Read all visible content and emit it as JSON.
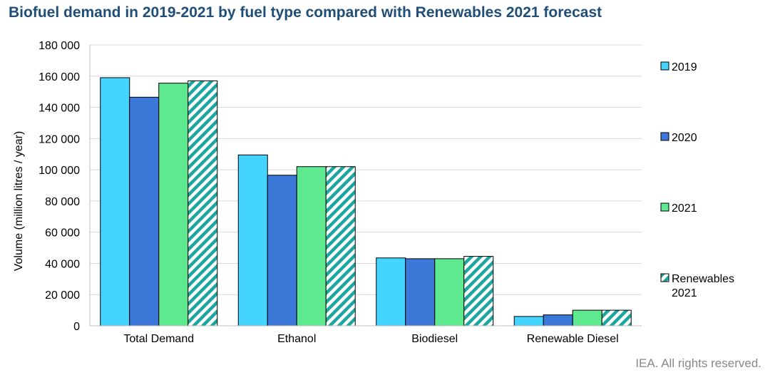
{
  "chart_data": {
    "type": "bar",
    "title": "Biofuel demand in 2019-2021 by fuel type compared with Renewables 2021 forecast",
    "ylabel": "Volume (million litres / year)",
    "xlabel": "",
    "categories": [
      "Total Demand",
      "Ethanol",
      "Biodiesel",
      "Renewable Diesel"
    ],
    "ylim": [
      0,
      180000
    ],
    "yticks": [
      0,
      20000,
      40000,
      60000,
      80000,
      100000,
      120000,
      140000,
      160000,
      180000
    ],
    "ytick_labels": [
      "0",
      "20 000",
      "40 000",
      "60 000",
      "80 000",
      "100 000",
      "120 000",
      "140 000",
      "160 000",
      "180 000"
    ],
    "grid": true,
    "legend_position": "right",
    "series": [
      {
        "name": "2019",
        "color": "#45d3ff",
        "pattern": "solid",
        "values": [
          159000,
          109500,
          43500,
          6000
        ]
      },
      {
        "name": "2020",
        "color": "#3c78d8",
        "pattern": "solid",
        "values": [
          146500,
          96500,
          43000,
          7000
        ]
      },
      {
        "name": "2021",
        "color": "#5ee88f",
        "pattern": "solid",
        "values": [
          155500,
          102000,
          43000,
          10000
        ]
      },
      {
        "name": "Renewables 2021",
        "legend_lines": [
          "Renewables",
          "2021"
        ],
        "color": "#1ca6a0",
        "pattern": "diagonal-stripes",
        "values": [
          157000,
          102000,
          44500,
          10000
        ]
      }
    ]
  },
  "footer": "IEA. All rights reserved."
}
